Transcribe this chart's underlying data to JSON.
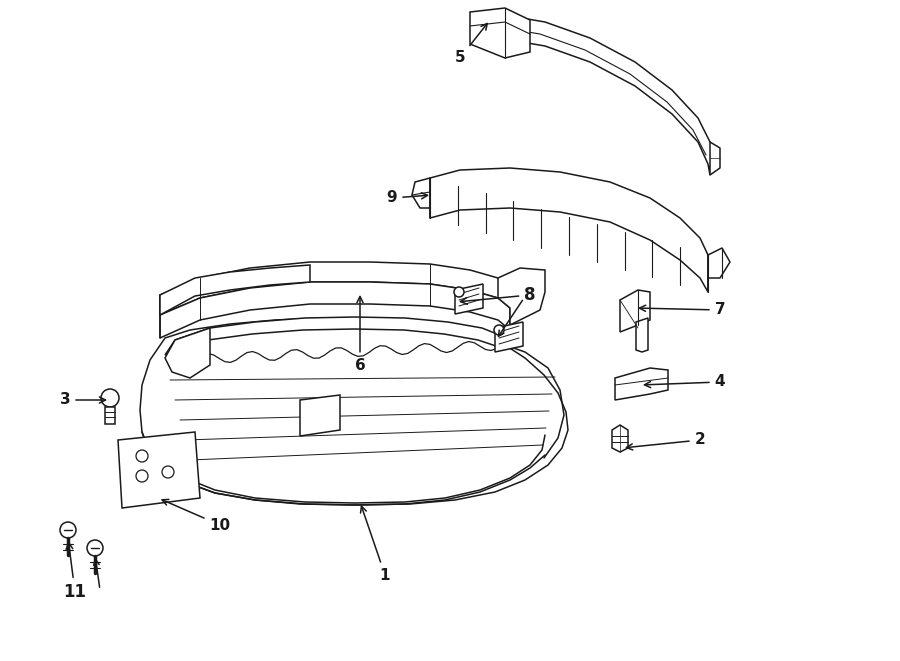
{
  "bg_color": "#ffffff",
  "line_color": "#1a1a1a",
  "lw": 1.1,
  "fig_width": 9.0,
  "fig_height": 6.61,
  "dpi": 100
}
